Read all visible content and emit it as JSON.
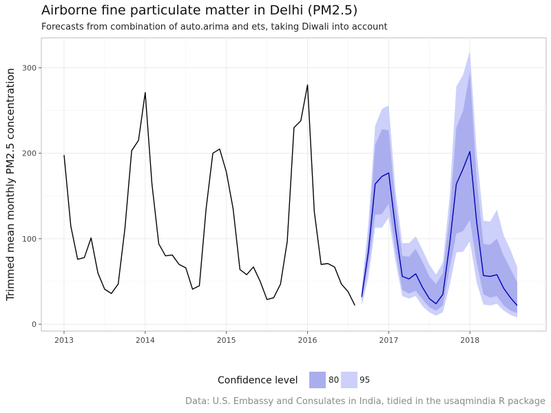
{
  "chart_data": {
    "type": "line",
    "title": "Airborne fine particulate matter in Delhi (PM2.5)",
    "subtitle": "Forecasts from combination of auto.arima and ets, taking Diwali into account",
    "ylabel": "Trimmed mean monthly PM2.5 concentration",
    "xlabel": "",
    "xlim": [
      2012.72,
      2018.94
    ],
    "ylim": [
      -8,
      335
    ],
    "x_ticks": [
      2013,
      2014,
      2015,
      2016,
      2017,
      2018
    ],
    "x_tick_labels": [
      "2013",
      "2014",
      "2015",
      "2016",
      "2017",
      "2018"
    ],
    "y_ticks": [
      0,
      100,
      200,
      300
    ],
    "y_tick_labels": [
      "0",
      "100",
      "200",
      "300"
    ],
    "grid": true,
    "legend": {
      "title": "Confidence level",
      "position": "bottom",
      "entries": [
        {
          "label": "80",
          "color": "#aaaeee"
        },
        {
          "label": "95",
          "color": "#ccd0fa"
        }
      ]
    },
    "caption": "Data: U.S. Embassy and Consulates in India, tidied in the usaqmindia R package",
    "observed": {
      "color": "#000000",
      "x": [
        2013.0,
        2013.083,
        2013.167,
        2013.25,
        2013.333,
        2013.417,
        2013.5,
        2013.583,
        2013.667,
        2013.75,
        2013.833,
        2013.917,
        2014.0,
        2014.083,
        2014.167,
        2014.25,
        2014.333,
        2014.417,
        2014.5,
        2014.583,
        2014.667,
        2014.75,
        2014.833,
        2014.917,
        2015.0,
        2015.083,
        2015.167,
        2015.25,
        2015.333,
        2015.417,
        2015.5,
        2015.583,
        2015.667,
        2015.75,
        2015.833,
        2015.917,
        2016.0,
        2016.083,
        2016.167,
        2016.25,
        2016.333,
        2016.417,
        2016.5,
        2016.583
      ],
      "y": [
        198,
        115,
        76,
        78,
        101,
        60,
        41,
        36,
        47,
        112,
        203,
        215,
        271,
        164,
        94,
        80,
        81,
        70,
        66,
        41,
        45,
        135,
        200,
        205,
        178,
        135,
        64,
        58,
        67,
        50,
        29,
        31,
        47,
        97,
        230,
        238,
        280,
        132,
        70,
        71,
        67,
        47,
        38,
        22
      ]
    },
    "forecast": {
      "color": "#0000b3",
      "x": [
        2016.667,
        2016.75,
        2016.833,
        2016.917,
        2017.0,
        2017.083,
        2017.167,
        2017.25,
        2017.333,
        2017.417,
        2017.5,
        2017.583,
        2017.667,
        2017.75,
        2017.833,
        2017.917,
        2018.0,
        2018.083,
        2018.167,
        2018.25,
        2018.333,
        2018.417,
        2018.5,
        2018.583
      ],
      "y": [
        32,
        85,
        164,
        173,
        177,
        112,
        56,
        53,
        59,
        43,
        30,
        24,
        35,
        93,
        164,
        182,
        202,
        120,
        57,
        56,
        58,
        42,
        31,
        22
      ],
      "lo80": [
        27,
        68,
        128,
        129,
        141,
        86,
        40,
        36,
        39,
        29,
        20,
        16,
        22,
        65,
        106,
        109,
        122,
        72,
        35,
        31,
        33,
        22,
        16,
        13
      ],
      "hi80": [
        37,
        102,
        210,
        228,
        227,
        140,
        80,
        79,
        88,
        73,
        56,
        47,
        60,
        125,
        230,
        250,
        295,
        170,
        94,
        93,
        100,
        80,
        65,
        49
      ],
      "lo95": [
        22,
        55,
        113,
        113,
        125,
        74,
        33,
        30,
        33,
        21,
        14,
        10,
        14,
        45,
        84,
        85,
        97,
        49,
        23,
        22,
        24,
        16,
        11,
        8
      ],
      "hi95": [
        42,
        118,
        232,
        252,
        256,
        157,
        95,
        95,
        103,
        87,
        70,
        58,
        72,
        148,
        278,
        292,
        320,
        202,
        121,
        120,
        134,
        104,
        87,
        67
      ]
    }
  }
}
